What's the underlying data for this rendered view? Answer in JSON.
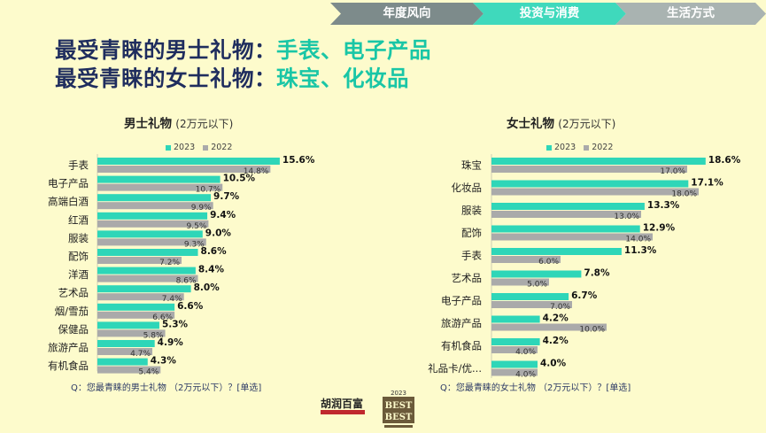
{
  "tabs": [
    {
      "label": "年度风向"
    },
    {
      "label": "投资与消费"
    },
    {
      "label": "生活方式"
    }
  ],
  "headline": {
    "line1_prefix": "最受青睐的男士礼物：",
    "line1_highlight": "手表、电子产品",
    "line2_prefix": "最受青睐的女士礼物：",
    "line2_highlight": "珠宝、化妆品"
  },
  "colors": {
    "series_2023": "#2ed6b8",
    "series_2022": "#aaaaaa",
    "title_navy": "#1f2d5e",
    "highlight_teal": "#19c6a6",
    "background": "#fdfbcc"
  },
  "logos": {
    "hurun": "胡润百富",
    "best_year": "2023",
    "best_text": "BEST OF THE BEST"
  },
  "chart_data": [
    {
      "type": "bar",
      "orientation": "horizontal",
      "title": "男士礼物",
      "subtitle": "(2万元以下)",
      "legend": [
        "2023",
        "2022"
      ],
      "legend_position": "top",
      "categories": [
        "手表",
        "电子产品",
        "高端白酒",
        "红酒",
        "服装",
        "配饰",
        "洋酒",
        "艺术品",
        "烟/雪茄",
        "保健品",
        "旅游产品",
        "有机食品"
      ],
      "series": [
        {
          "name": "2023",
          "values": [
            15.6,
            10.5,
            9.7,
            9.4,
            9.0,
            8.6,
            8.4,
            8.0,
            6.6,
            5.3,
            4.9,
            4.3
          ]
        },
        {
          "name": "2022",
          "values": [
            14.8,
            10.7,
            9.9,
            9.5,
            9.3,
            7.2,
            8.6,
            7.4,
            6.6,
            5.8,
            4.7,
            5.4
          ]
        }
      ],
      "value_format": "%",
      "note": "Q：您最青睐的男士礼物 （2万元以下）？[单选]"
    },
    {
      "type": "bar",
      "orientation": "horizontal",
      "title": "女士礼物",
      "subtitle": "(2万元以下)",
      "legend": [
        "2023",
        "2022"
      ],
      "legend_position": "top",
      "categories": [
        "珠宝",
        "化妆品",
        "服装",
        "配饰",
        "手表",
        "艺术品",
        "电子产品",
        "旅游产品",
        "有机食品",
        "礼品卡/优..."
      ],
      "series": [
        {
          "name": "2023",
          "values": [
            18.6,
            17.1,
            13.3,
            12.9,
            11.3,
            7.8,
            6.7,
            4.2,
            4.2,
            4.0
          ]
        },
        {
          "name": "2022",
          "values": [
            17.0,
            18.0,
            13.0,
            14.0,
            6.0,
            5.0,
            7.0,
            10.0,
            4.0,
            4.0
          ]
        }
      ],
      "value_format": "%",
      "note": "Q：您最青睐的女士礼物 （2万元以下）？[单选]"
    }
  ]
}
